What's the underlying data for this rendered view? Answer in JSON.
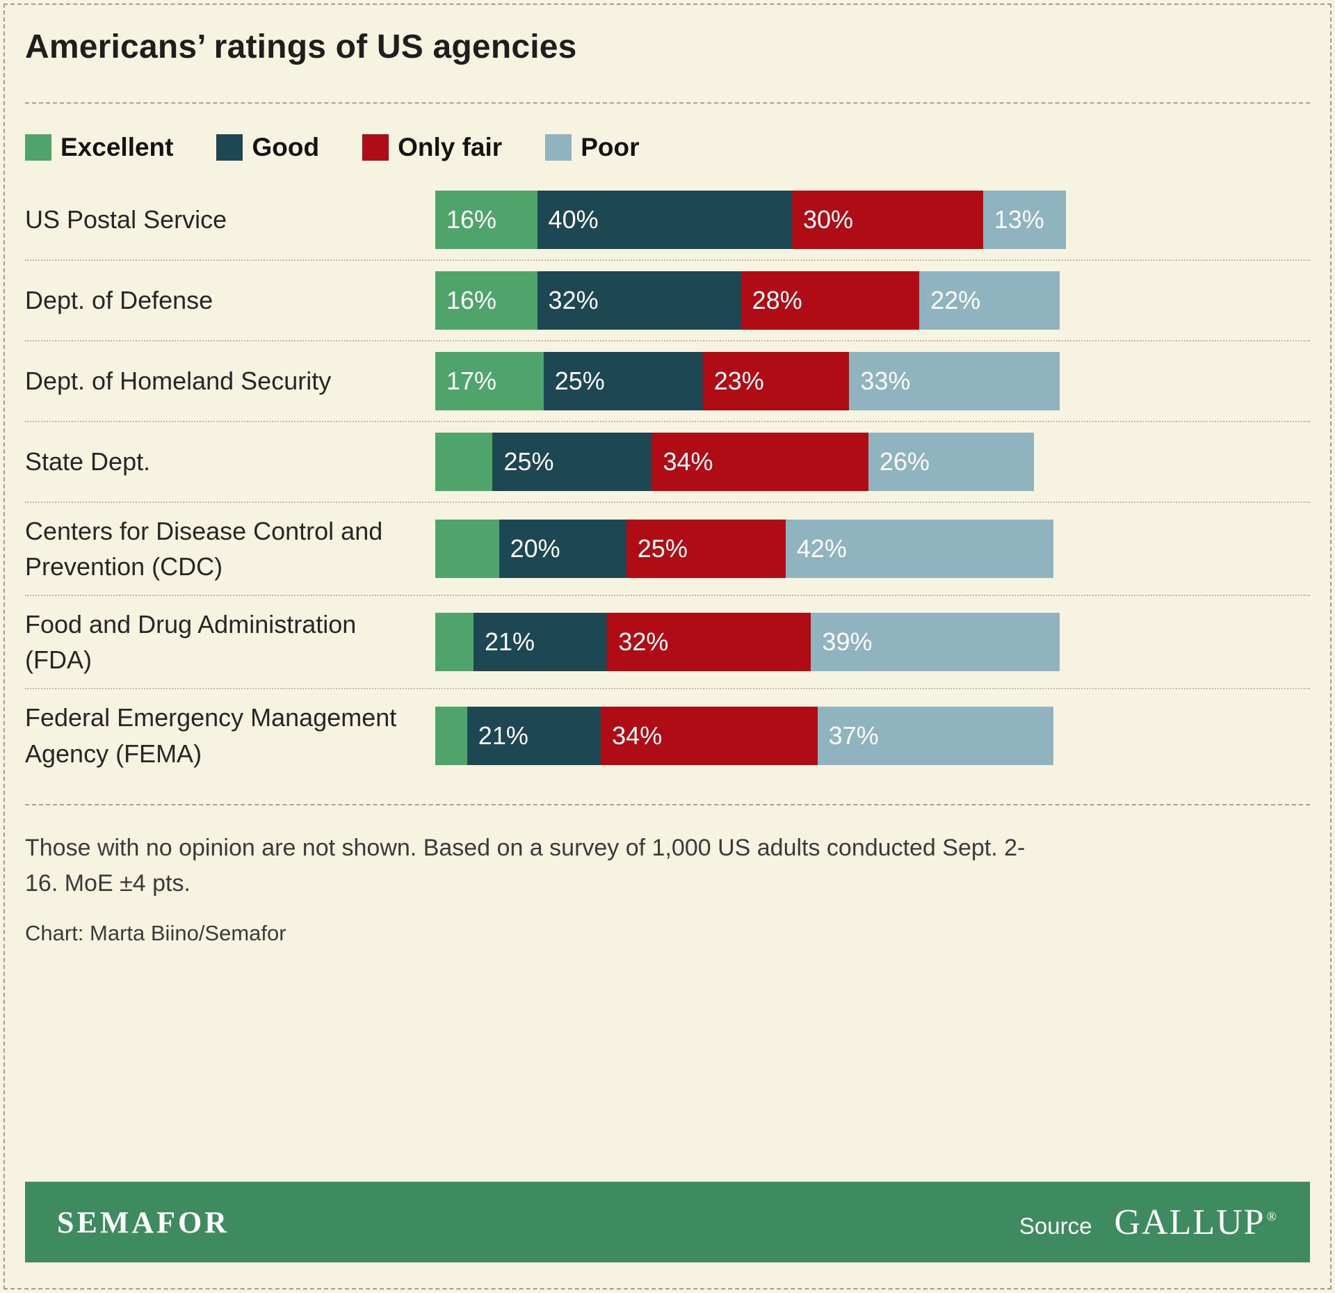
{
  "chart_data": {
    "type": "bar",
    "orientation": "horizontal",
    "stacked": true,
    "unit": "percent",
    "title": "Americans’ ratings of US agencies",
    "xlim": [
      0,
      100
    ],
    "legend_position": "top",
    "grid": false,
    "categories": [
      "US Postal Service",
      "Dept. of Defense",
      "Dept. of Homeland Security",
      "State Dept.",
      "Centers for Disease Control and Prevention (CDC)",
      "Food and Drug Administration (FDA)",
      "Federal Emergency Management Agency (FEMA)"
    ],
    "series": [
      {
        "name": "Excellent",
        "color": "#4ea46b",
        "values": [
          16,
          16,
          17,
          9,
          10,
          6,
          5
        ],
        "labels": [
          "16%",
          "16%",
          "17%",
          "",
          "",
          "",
          ""
        ]
      },
      {
        "name": "Good",
        "color": "#1d4752",
        "values": [
          40,
          32,
          25,
          25,
          20,
          21,
          21
        ],
        "labels": [
          "40%",
          "32%",
          "25%",
          "25%",
          "20%",
          "21%",
          "21%"
        ]
      },
      {
        "name": "Only fair",
        "color": "#b00c15",
        "values": [
          30,
          28,
          23,
          34,
          25,
          32,
          34
        ],
        "labels": [
          "30%",
          "28%",
          "23%",
          "34%",
          "25%",
          "32%",
          "34%"
        ]
      },
      {
        "name": "Poor",
        "color": "#8fb4c0",
        "values": [
          13,
          22,
          33,
          26,
          42,
          39,
          37
        ],
        "labels": [
          "13%",
          "22%",
          "33%",
          "26%",
          "42%",
          "39%",
          "37%"
        ]
      }
    ]
  },
  "notes": {
    "footnote": "Those with no opinion are not shown. Based on a survey of 1,000 US adults conducted Sept. 2-16. MoE ±4 pts.",
    "credit": "Chart: Marta Biino/Semafor"
  },
  "footer": {
    "brand": "SEMAFOR",
    "source_label": "Source",
    "source_name": "GALLUP",
    "registered": "®",
    "background": "#3e8b60"
  },
  "colors": {
    "page_background": "#f7f3e1",
    "excellent": "#4ea46b",
    "good": "#1d4752",
    "only_fair": "#b00c15",
    "poor": "#8fb4c0",
    "footer_green": "#3e8b60"
  }
}
